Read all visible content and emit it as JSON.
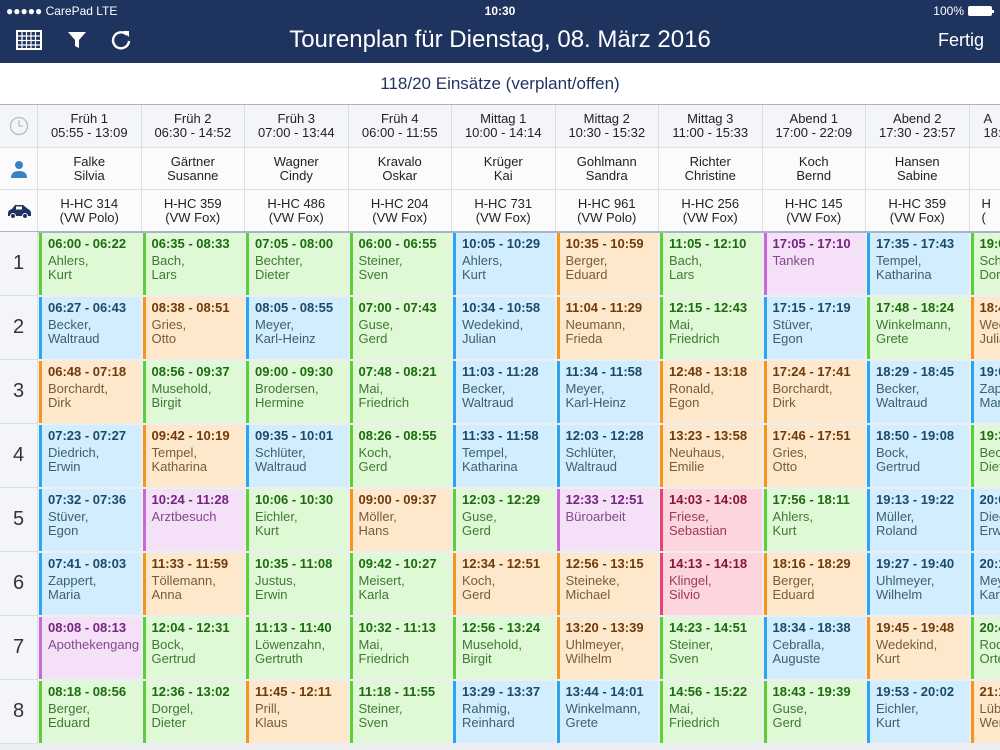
{
  "status_bar": {
    "carrier": "●●●●● CarePad  LTE",
    "time": "10:30",
    "battery": "100%"
  },
  "toolbar": {
    "title": "Tourenplan für Dienstag, 08. März 2016",
    "done_label": "Fertig",
    "icons": [
      "calendar-grid-icon",
      "filter-icon",
      "refresh-icon"
    ]
  },
  "summary": "118/20 Einsätze (verplant/offen)",
  "palette": {
    "g": {
      "bg": "#dff8d5",
      "border": "#5ccf36",
      "time": "#1d6a10",
      "name": "#3f7a33"
    },
    "b": {
      "bg": "#d2edfd",
      "border": "#2aa6ee",
      "time": "#1b4a66",
      "name": "#3b5f74"
    },
    "o": {
      "bg": "#fde8cb",
      "border": "#f5961c",
      "time": "#6e3a0c",
      "name": "#7a5a3c"
    },
    "p": {
      "bg": "#f4e0f7",
      "border": "#c66ad6",
      "time": "#74247f",
      "name": "#86478f"
    },
    "r": {
      "bg": "#fcd5df",
      "border": "#ea3f74",
      "time": "#861632",
      "name": "#9a3a55"
    }
  },
  "columns": [
    {
      "shift": "Früh 1",
      "hours": "05:55 - 13:09",
      "last": "Falke",
      "first": "Silvia",
      "plate": "H-HC 314",
      "model": "(VW Polo)"
    },
    {
      "shift": "Früh 2",
      "hours": "06:30 - 14:52",
      "last": "Gärtner",
      "first": "Susanne",
      "plate": "H-HC 359",
      "model": "(VW Fox)"
    },
    {
      "shift": "Früh 3",
      "hours": "07:00 - 13:44",
      "last": "Wagner",
      "first": "Cindy",
      "plate": "H-HC 486",
      "model": "(VW Fox)"
    },
    {
      "shift": "Früh 4",
      "hours": "06:00 - 11:55",
      "last": "Kravalo",
      "first": "Oskar",
      "plate": "H-HC 204",
      "model": "(VW Fox)"
    },
    {
      "shift": "Mittag 1",
      "hours": "10:00 - 14:14",
      "last": "Krüger",
      "first": "Kai",
      "plate": "H-HC 731",
      "model": "(VW Fox)"
    },
    {
      "shift": "Mittag 2",
      "hours": "10:30 - 15:32",
      "last": "Gohlmann",
      "first": "Sandra",
      "plate": "H-HC 961",
      "model": "(VW Polo)"
    },
    {
      "shift": "Mittag 3",
      "hours": "11:00 - 15:33",
      "last": "Richter",
      "first": "Christine",
      "plate": "H-HC 256",
      "model": "(VW Fox)"
    },
    {
      "shift": "Abend 1",
      "hours": "17:00 - 22:09",
      "last": "Koch",
      "first": "Bernd",
      "plate": "H-HC 145",
      "model": "(VW Fox)"
    },
    {
      "shift": "Abend 2",
      "hours": "17:30 - 23:57",
      "last": "Hansen",
      "first": "Sabine",
      "plate": "H-HC 359",
      "model": "(VW Fox)"
    },
    {
      "shift": "A",
      "hours": "18:",
      "last": "",
      "first": "",
      "plate": "H",
      "model": "("
    }
  ],
  "rows": [
    {
      "num": "1",
      "cells": [
        {
          "time": "06:00 - 06:22",
          "l1": "Ahlers,",
          "l2": "Kurt",
          "type": "g"
        },
        {
          "time": "06:35 - 08:33",
          "l1": "Bach,",
          "l2": "Lars",
          "type": "g"
        },
        {
          "time": "07:05 - 08:00",
          "l1": "Bechter,",
          "l2": "Dieter",
          "type": "g"
        },
        {
          "time": "06:00 - 06:55",
          "l1": "Steiner,",
          "l2": "Sven",
          "type": "g"
        },
        {
          "time": "10:05 - 10:29",
          "l1": "Ahlers,",
          "l2": "Kurt",
          "type": "b"
        },
        {
          "time": "10:35 - 10:59",
          "l1": "Berger,",
          "l2": "Eduard",
          "type": "o"
        },
        {
          "time": "11:05 - 12:10",
          "l1": "Bach,",
          "l2": "Lars",
          "type": "g"
        },
        {
          "time": "17:05 - 17:10",
          "l1": "Tanken",
          "l2": "",
          "type": "p"
        },
        {
          "time": "17:35 - 17:43",
          "l1": "Tempel,",
          "l2": "Katharina",
          "type": "b"
        },
        {
          "time": "19:0",
          "l1": "Schr",
          "l2": "Doro",
          "type": "g"
        }
      ]
    },
    {
      "num": "2",
      "cells": [
        {
          "time": "06:27 - 06:43",
          "l1": "Becker,",
          "l2": "Waltraud",
          "type": "b"
        },
        {
          "time": "08:38 - 08:51",
          "l1": "Gries,",
          "l2": "Otto",
          "type": "o"
        },
        {
          "time": "08:05 - 08:55",
          "l1": "Meyer,",
          "l2": "Karl-Heinz",
          "type": "b"
        },
        {
          "time": "07:00 - 07:43",
          "l1": "Guse,",
          "l2": "Gerd",
          "type": "g"
        },
        {
          "time": "10:34 - 10:58",
          "l1": "Wedekind,",
          "l2": "Julian",
          "type": "b"
        },
        {
          "time": "11:04 - 11:29",
          "l1": "Neumann,",
          "l2": "Frieda",
          "type": "o"
        },
        {
          "time": "12:15 - 12:43",
          "l1": "Mai,",
          "l2": "Friedrich",
          "type": "g"
        },
        {
          "time": "17:15 - 17:19",
          "l1": "Stüver,",
          "l2": "Egon",
          "type": "b"
        },
        {
          "time": "17:48 - 18:24",
          "l1": "Winkelmann,",
          "l2": "Grete",
          "type": "g"
        },
        {
          "time": "18:4",
          "l1": "Wec",
          "l2": "Julia",
          "type": "o"
        }
      ]
    },
    {
      "num": "3",
      "cells": [
        {
          "time": "06:48 - 07:18",
          "l1": "Borchardt,",
          "l2": "Dirk",
          "type": "o"
        },
        {
          "time": "08:56 - 09:37",
          "l1": "Musehold,",
          "l2": "Birgit",
          "type": "g"
        },
        {
          "time": "09:00 - 09:30",
          "l1": "Brodersen,",
          "l2": "Hermine",
          "type": "g"
        },
        {
          "time": "07:48 - 08:21",
          "l1": "Mai,",
          "l2": "Friedrich",
          "type": "g"
        },
        {
          "time": "11:03 - 11:28",
          "l1": "Becker,",
          "l2": "Waltraud",
          "type": "b"
        },
        {
          "time": "11:34 - 11:58",
          "l1": "Meyer,",
          "l2": "Karl-Heinz",
          "type": "b"
        },
        {
          "time": "12:48 - 13:18",
          "l1": "Ronald,",
          "l2": "Egon",
          "type": "o"
        },
        {
          "time": "17:24 - 17:41",
          "l1": "Borchardt,",
          "l2": "Dirk",
          "type": "o"
        },
        {
          "time": "18:29 - 18:45",
          "l1": "Becker,",
          "l2": "Waltraud",
          "type": "b"
        },
        {
          "time": "19:0",
          "l1": "Zapp",
          "l2": "Mari",
          "type": "b"
        }
      ]
    },
    {
      "num": "4",
      "cells": [
        {
          "time": "07:23 - 07:27",
          "l1": "Diedrich,",
          "l2": "Erwin",
          "type": "b"
        },
        {
          "time": "09:42 - 10:19",
          "l1": "Tempel,",
          "l2": "Katharina",
          "type": "o"
        },
        {
          "time": "09:35 - 10:01",
          "l1": "Schlüter,",
          "l2": "Waltraud",
          "type": "b"
        },
        {
          "time": "08:26 - 08:55",
          "l1": "Koch,",
          "l2": "Gerd",
          "type": "g"
        },
        {
          "time": "11:33 - 11:58",
          "l1": "Tempel,",
          "l2": "Katharina",
          "type": "b"
        },
        {
          "time": "12:03 - 12:28",
          "l1": "Schlüter,",
          "l2": "Waltraud",
          "type": "b"
        },
        {
          "time": "13:23 - 13:58",
          "l1": "Neuhaus,",
          "l2": "Emilie",
          "type": "o"
        },
        {
          "time": "17:46 - 17:51",
          "l1": "Gries,",
          "l2": "Otto",
          "type": "o"
        },
        {
          "time": "18:50 - 19:08",
          "l1": "Bock,",
          "l2": "Gertrud",
          "type": "b"
        },
        {
          "time": "19:3",
          "l1": "Beck",
          "l2": "Diete",
          "type": "g"
        }
      ]
    },
    {
      "num": "5",
      "cells": [
        {
          "time": "07:32 - 07:36",
          "l1": "Stüver,",
          "l2": "Egon",
          "type": "b"
        },
        {
          "time": "10:24 - 11:28",
          "l1": "Arztbesuch",
          "l2": "",
          "type": "p"
        },
        {
          "time": "10:06 - 10:30",
          "l1": "Eichler,",
          "l2": "Kurt",
          "type": "g"
        },
        {
          "time": "09:00 - 09:37",
          "l1": "Möller,",
          "l2": "Hans",
          "type": "o"
        },
        {
          "time": "12:03 - 12:29",
          "l1": "Guse,",
          "l2": "Gerd",
          "type": "g"
        },
        {
          "time": "12:33 - 12:51",
          "l1": "Büroarbeit",
          "l2": "",
          "type": "p"
        },
        {
          "time": "14:03 - 14:08",
          "l1": "Friese,",
          "l2": "Sebastian",
          "type": "r"
        },
        {
          "time": "17:56 - 18:11",
          "l1": "Ahlers,",
          "l2": "Kurt",
          "type": "g"
        },
        {
          "time": "19:13 - 19:22",
          "l1": "Müller,",
          "l2": "Roland",
          "type": "b"
        },
        {
          "time": "20:0",
          "l1": "Diec",
          "l2": "Erwi",
          "type": "b"
        }
      ]
    },
    {
      "num": "6",
      "cells": [
        {
          "time": "07:41 - 08:03",
          "l1": "Zappert,",
          "l2": "Maria",
          "type": "b"
        },
        {
          "time": "11:33 - 11:59",
          "l1": "Töllemann,",
          "l2": "Anna",
          "type": "o"
        },
        {
          "time": "10:35 - 11:08",
          "l1": "Justus,",
          "l2": "Erwin",
          "type": "g"
        },
        {
          "time": "09:42 - 10:27",
          "l1": "Meisert,",
          "l2": "Karla",
          "type": "g"
        },
        {
          "time": "12:34 - 12:51",
          "l1": "Koch,",
          "l2": "Gerd",
          "type": "o"
        },
        {
          "time": "12:56 - 13:15",
          "l1": "Steineke,",
          "l2": "Michael",
          "type": "o"
        },
        {
          "time": "14:13 - 14:18",
          "l1": "Klingel,",
          "l2": "Silvio",
          "type": "r"
        },
        {
          "time": "18:16 - 18:29",
          "l1": "Berger,",
          "l2": "Eduard",
          "type": "o"
        },
        {
          "time": "19:27 - 19:40",
          "l1": "Uhlmeyer,",
          "l2": "Wilhelm",
          "type": "b"
        },
        {
          "time": "20:1",
          "l1": "Mey",
          "l2": "Karl-",
          "type": "b"
        }
      ]
    },
    {
      "num": "7",
      "cells": [
        {
          "time": "08:08 - 08:13",
          "l1": "Apothekengang",
          "l2": "",
          "type": "p"
        },
        {
          "time": "12:04 - 12:31",
          "l1": "Bock,",
          "l2": "Gertrud",
          "type": "g"
        },
        {
          "time": "11:13 - 11:40",
          "l1": "Löwenzahn,",
          "l2": "Gertruth",
          "type": "g"
        },
        {
          "time": "10:32 - 11:13",
          "l1": "Mai,",
          "l2": "Friedrich",
          "type": "g"
        },
        {
          "time": "12:56 - 13:24",
          "l1": "Musehold,",
          "l2": "Birgit",
          "type": "g"
        },
        {
          "time": "13:20 - 13:39",
          "l1": "Uhlmeyer,",
          "l2": "Wilhelm",
          "type": "o"
        },
        {
          "time": "14:23 - 14:51",
          "l1": "Steiner,",
          "l2": "Sven",
          "type": "g"
        },
        {
          "time": "18:34 - 18:38",
          "l1": "Cebralla,",
          "l2": "Auguste",
          "type": "b"
        },
        {
          "time": "19:45 - 19:48",
          "l1": "Wedekind,",
          "l2": "Kurt",
          "type": "o"
        },
        {
          "time": "20:4",
          "l1": "Rod",
          "l2": "Orte",
          "type": "g"
        }
      ]
    },
    {
      "num": "8",
      "cells": [
        {
          "time": "08:18 - 08:56",
          "l1": "Berger,",
          "l2": "Eduard",
          "type": "g"
        },
        {
          "time": "12:36 - 13:02",
          "l1": "Dorgel,",
          "l2": "Dieter",
          "type": "g"
        },
        {
          "time": "11:45 - 12:11",
          "l1": "Prill,",
          "l2": "Klaus",
          "type": "o"
        },
        {
          "time": "11:18 - 11:55",
          "l1": "Steiner,",
          "l2": "Sven",
          "type": "g"
        },
        {
          "time": "13:29 - 13:37",
          "l1": "Rahmig,",
          "l2": "Reinhard",
          "type": "b"
        },
        {
          "time": "13:44 - 14:01",
          "l1": "Winkelmann,",
          "l2": "Grete",
          "type": "b"
        },
        {
          "time": "14:56 - 15:22",
          "l1": "Mai,",
          "l2": "Friedrich",
          "type": "g"
        },
        {
          "time": "18:43 - 19:39",
          "l1": "Guse,",
          "l2": "Gerd",
          "type": "g"
        },
        {
          "time": "19:53 - 20:02",
          "l1": "Eichler,",
          "l2": "Kurt",
          "type": "b"
        },
        {
          "time": "21:1",
          "l1": "Lübo",
          "l2": "Wer",
          "type": "o"
        }
      ]
    }
  ]
}
